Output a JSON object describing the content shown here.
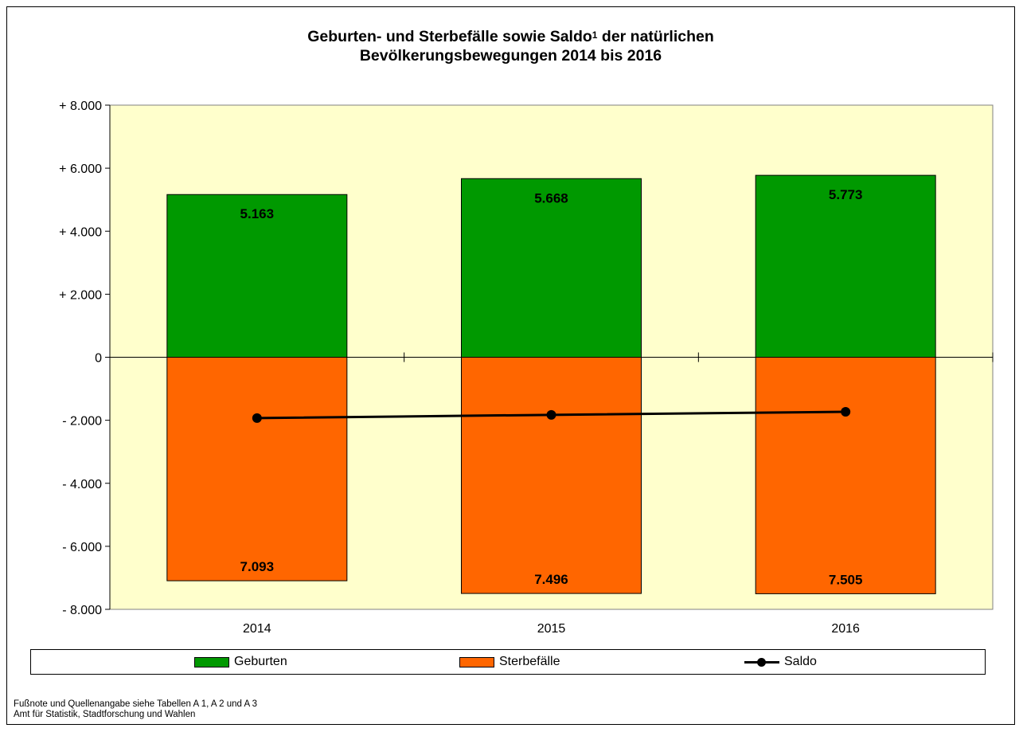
{
  "chart_data": {
    "type": "bar",
    "title_main": "Geburten- und Sterbefälle sowie Saldo",
    "title_sup": "1",
    "title_rest": " der natürlichen",
    "title_line2": "Bevölkerungsbewegungen 2014 bis 2016",
    "categories": [
      "2014",
      "2015",
      "2016"
    ],
    "ylim": [
      -8000,
      8000
    ],
    "yticks": [
      8000,
      6000,
      4000,
      2000,
      0,
      -2000,
      -4000,
      -6000,
      -8000
    ],
    "ytick_labels": [
      "+ 8.000",
      "+ 6.000",
      "+ 4.000",
      "+ 2.000",
      "0",
      "- 2.000",
      "- 4.000",
      "- 6.000",
      "- 8.000"
    ],
    "series": [
      {
        "name": "Geburten",
        "type": "bar",
        "values": [
          5163,
          5668,
          5773
        ],
        "labels": [
          "5.163",
          "5.668",
          "5.773"
        ],
        "color": "#009900"
      },
      {
        "name": "Sterbefälle",
        "type": "bar",
        "values": [
          -7093,
          -7496,
          -7505
        ],
        "labels": [
          "7.093",
          "7.496",
          "7.505"
        ],
        "color": "#FF6600"
      },
      {
        "name": "Saldo",
        "type": "line",
        "values": [
          -1930,
          -1828,
          -1732
        ],
        "color": "#000000"
      }
    ],
    "plot_background": "#FFFFCC",
    "grid": false,
    "legend_position": "bottom"
  },
  "footnote": {
    "line1": "Fußnote und Quellenangabe siehe Tabellen A 1, A 2 und A 3",
    "line2": "Amt für Statistik, Stadtforschung und Wahlen"
  }
}
